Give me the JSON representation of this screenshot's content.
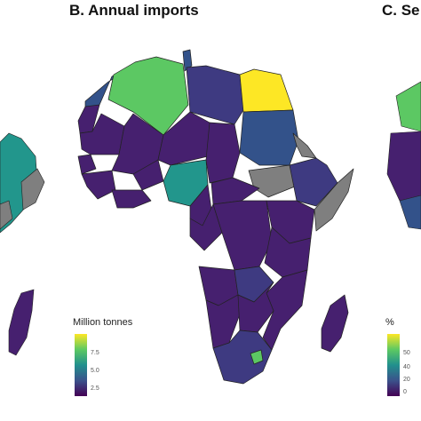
{
  "panels": [
    {
      "title": "B. Annual imports",
      "legend_title": "Million tonnes",
      "ticks": [
        "7.5",
        "5.0",
        "2.5"
      ]
    },
    {
      "title": "C. Se",
      "legend_title": "%",
      "ticks": [
        "50",
        "40",
        "20",
        "0"
      ]
    }
  ],
  "colors": {
    "deep": "#440154",
    "purple": "#46206f",
    "mid_purple": "#3e3a81",
    "blue": "#33528a",
    "teal": "#22968c",
    "green": "#5cc863",
    "light_green": "#89d548",
    "yellow": "#fde725",
    "no_data": "#7f7f7f",
    "border": "#222222"
  }
}
